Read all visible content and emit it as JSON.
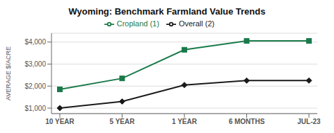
{
  "chart_data": {
    "type": "line",
    "title": "Wyoming: Benchmark Farmland Value Trends",
    "y_label": "AVERAGE $/ACRE",
    "categories": [
      "10 YEAR",
      "5 YEAR",
      "1 YEAR",
      "6 MONTHS",
      "JUL-23"
    ],
    "series": [
      {
        "name": "Overall (2)",
        "color": "#1a1a1a",
        "marker": "diamond",
        "values": [
          1000,
          1300,
          2050,
          2250,
          2250
        ]
      },
      {
        "name": "Cropland (1)",
        "color": "#1a7a4a",
        "marker": "square",
        "values": [
          1850,
          2350,
          3650,
          4050,
          4050
        ]
      }
    ],
    "ylim": [
      750,
      4400
    ],
    "yticks": [
      {
        "value": 1000,
        "label": "$1,000"
      },
      {
        "value": 2000,
        "label": "$2,000"
      },
      {
        "value": 3000,
        "label": "$3,000"
      },
      {
        "value": 4000,
        "label": "$4,000"
      }
    ],
    "grid": "y",
    "legend": "top"
  }
}
